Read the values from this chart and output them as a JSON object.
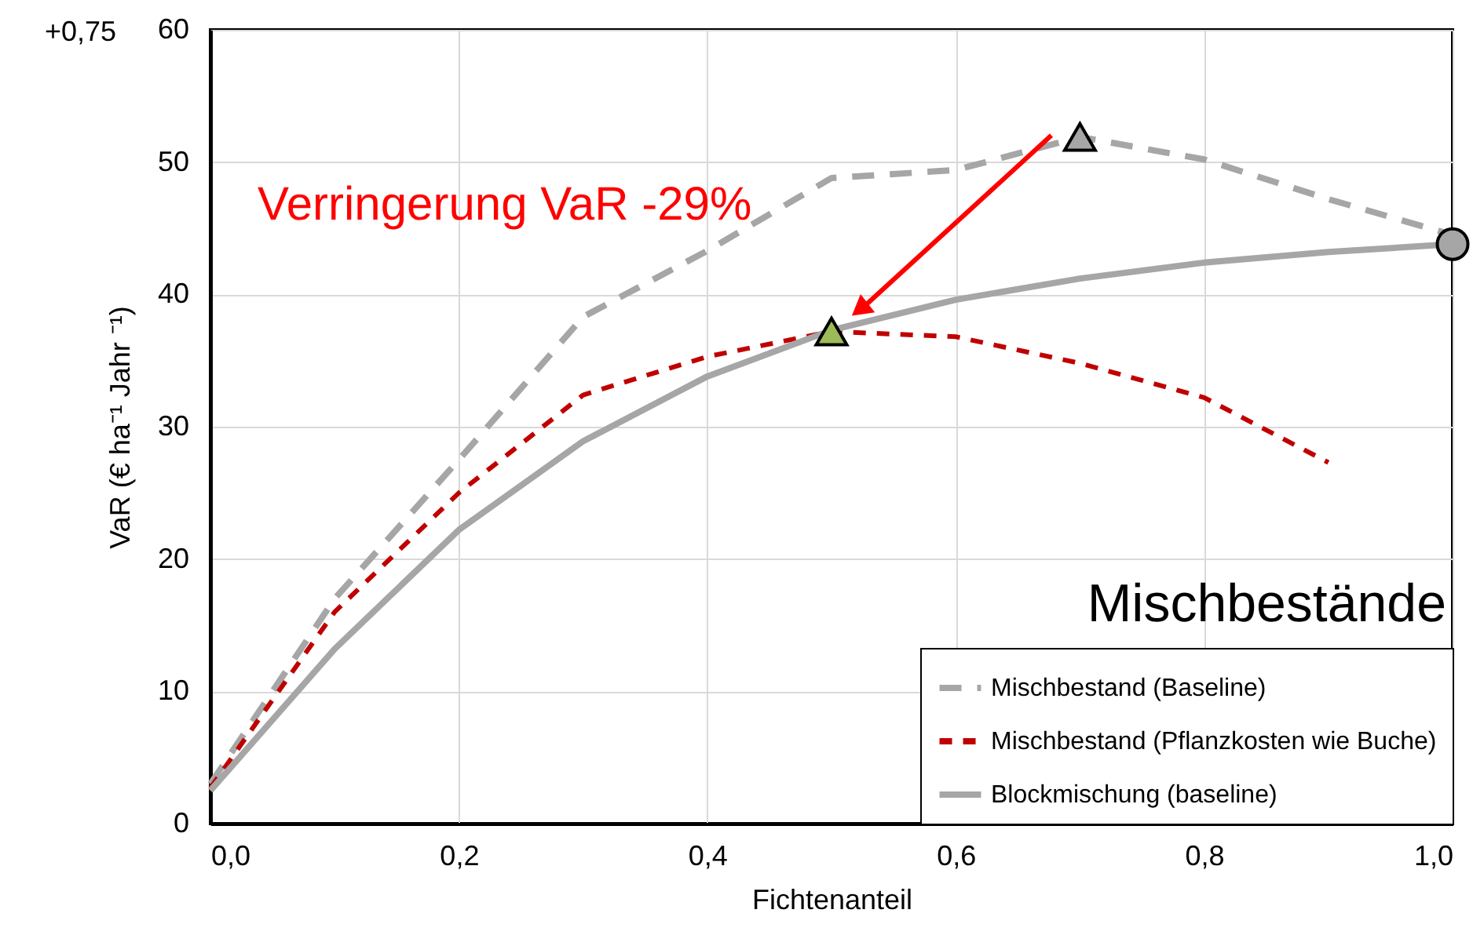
{
  "chart_data": {
    "type": "line",
    "xlabel": "Fichtenanteil",
    "ylabel": "VaR (€ ha⁻¹ Jahr ⁻¹)",
    "x": [
      0,
      0.1,
      0.2,
      0.3,
      0.4,
      0.5,
      0.6,
      0.7,
      0.8,
      0.9,
      1.0
    ],
    "series": [
      {
        "name": "Mischbestand (Baseline)",
        "color": "#a6a6a6",
        "line_style": "dashed",
        "values": [
          3.0,
          17,
          27.5,
          38.3,
          43.3,
          48.8,
          49.4,
          51.9,
          50.2,
          47.2,
          44.5
        ]
      },
      {
        "name": "Mischbestand (Pflanzkosten wie Buche)",
        "color": "#c00000",
        "line_style": "dotted",
        "values": [
          2.7,
          16,
          25,
          32.4,
          35.3,
          37.2,
          36.8,
          34.8,
          32.2,
          27.3,
          null
        ]
      },
      {
        "name": "Blockmischung (baseline)",
        "color": "#a6a6a6",
        "line_style": "solid",
        "values": [
          2.5,
          13.2,
          22.2,
          28.9,
          33.8,
          37.3,
          39.6,
          41.2,
          42.4,
          43.2,
          43.8
        ]
      },
      {
        "type": "scatter",
        "marker": "triangle",
        "color": "#a6a6a6",
        "x": [
          0.7
        ],
        "values": [
          51.9
        ]
      },
      {
        "type": "scatter",
        "marker": "triangle",
        "color": "#9bbb59",
        "x": [
          0.5
        ],
        "values": [
          37.2
        ]
      },
      {
        "type": "scatter",
        "marker": "circle",
        "color": "#a6a6a6",
        "x": [
          1.0
        ],
        "values": [
          43.8
        ]
      }
    ],
    "xlim": [
      0,
      1.0
    ],
    "ylim": [
      0,
      60
    ],
    "xticks": [
      {
        "value": 0,
        "label": "0,0"
      },
      {
        "value": 0.2,
        "label": "0,2"
      },
      {
        "value": 0.4,
        "label": "0,4"
      },
      {
        "value": 0.6,
        "label": "0,6"
      },
      {
        "value": 0.8,
        "label": "0,8"
      },
      {
        "value": 1.0,
        "label": "1,0"
      }
    ],
    "yticks": [
      0,
      10,
      20,
      30,
      40,
      50,
      60
    ],
    "grid": true,
    "legend": "bottom right",
    "annotations": [
      {
        "text": "Verringerung VaR -29%",
        "x": 0.5,
        "y": 37.2
      },
      "Mischbestände",
      "+0,75"
    ]
  }
}
